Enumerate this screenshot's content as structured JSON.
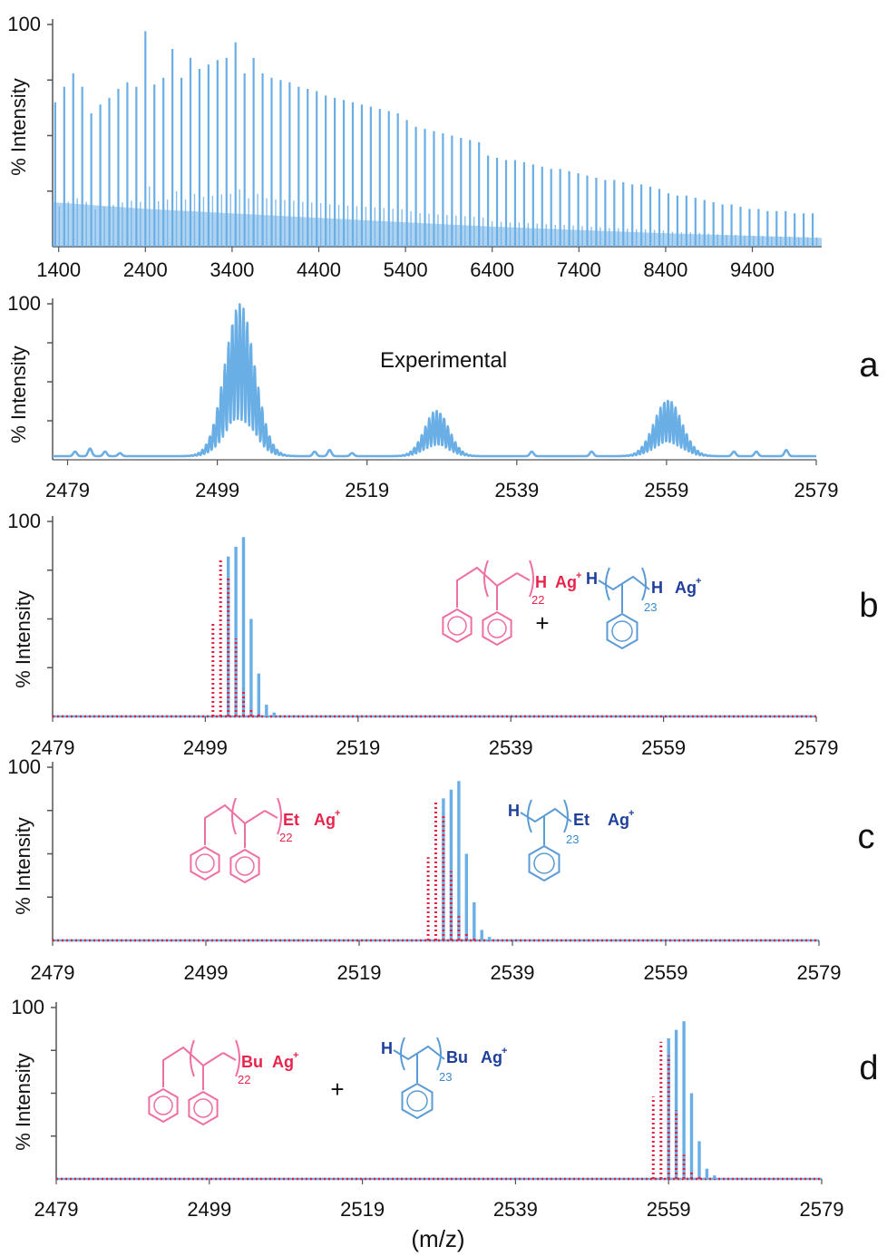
{
  "colors": {
    "experimental": "#6aaee6",
    "theory_blue": "#6aaee6",
    "theory_red": "#e5213f",
    "axis": "#555555",
    "chem_red": "#e8244c",
    "chem_blue": "#1f3f9a",
    "ring_red": "#ee6fa1",
    "ring_blue": "#5b9bd5"
  },
  "xlabel": "(m/z)",
  "chart_data": [
    {
      "id": "overview",
      "type": "line",
      "title": "",
      "ylabel": "% Intensity",
      "ytick_label": "100",
      "xlim": [
        1330,
        10200
      ],
      "ylim": [
        0,
        100
      ],
      "xticks": [
        "1400",
        "2400",
        "3400",
        "4400",
        "5400",
        "6400",
        "7400",
        "8400",
        "9400"
      ],
      "peak_spacing": 104,
      "peaks": [
        {
          "x": 1360,
          "y": 65
        },
        {
          "x": 1464,
          "y": 72
        },
        {
          "x": 1568,
          "y": 78
        },
        {
          "x": 1672,
          "y": 72
        },
        {
          "x": 1776,
          "y": 60
        },
        {
          "x": 1880,
          "y": 64
        },
        {
          "x": 1984,
          "y": 67
        },
        {
          "x": 2088,
          "y": 71
        },
        {
          "x": 2192,
          "y": 74
        },
        {
          "x": 2296,
          "y": 72
        },
        {
          "x": 2400,
          "y": 97
        },
        {
          "x": 2504,
          "y": 73
        },
        {
          "x": 2608,
          "y": 76
        },
        {
          "x": 2712,
          "y": 89
        },
        {
          "x": 2816,
          "y": 76
        },
        {
          "x": 2920,
          "y": 85
        },
        {
          "x": 3024,
          "y": 80
        },
        {
          "x": 3128,
          "y": 82
        },
        {
          "x": 3232,
          "y": 84
        },
        {
          "x": 3336,
          "y": 85
        },
        {
          "x": 3440,
          "y": 92
        },
        {
          "x": 3544,
          "y": 78
        },
        {
          "x": 3648,
          "y": 85
        },
        {
          "x": 3752,
          "y": 78
        },
        {
          "x": 3856,
          "y": 76
        },
        {
          "x": 3960,
          "y": 75
        },
        {
          "x": 4064,
          "y": 74
        },
        {
          "x": 4168,
          "y": 72
        },
        {
          "x": 4272,
          "y": 71
        },
        {
          "x": 4376,
          "y": 70
        },
        {
          "x": 4480,
          "y": 68
        },
        {
          "x": 4584,
          "y": 67
        },
        {
          "x": 4688,
          "y": 66
        },
        {
          "x": 4792,
          "y": 65
        },
        {
          "x": 4896,
          "y": 64
        },
        {
          "x": 5000,
          "y": 63
        },
        {
          "x": 5104,
          "y": 62
        },
        {
          "x": 5208,
          "y": 61
        },
        {
          "x": 5312,
          "y": 60
        },
        {
          "x": 5416,
          "y": 57
        },
        {
          "x": 5520,
          "y": 54
        },
        {
          "x": 5624,
          "y": 53
        },
        {
          "x": 5728,
          "y": 52
        },
        {
          "x": 5832,
          "y": 51
        },
        {
          "x": 5936,
          "y": 50
        },
        {
          "x": 6040,
          "y": 49
        },
        {
          "x": 6144,
          "y": 48
        },
        {
          "x": 6248,
          "y": 47
        },
        {
          "x": 6352,
          "y": 41
        },
        {
          "x": 6456,
          "y": 40
        },
        {
          "x": 6560,
          "y": 39
        },
        {
          "x": 6664,
          "y": 39
        },
        {
          "x": 6768,
          "y": 38
        },
        {
          "x": 6872,
          "y": 37
        },
        {
          "x": 6976,
          "y": 36
        },
        {
          "x": 7080,
          "y": 35
        },
        {
          "x": 7184,
          "y": 35
        },
        {
          "x": 7288,
          "y": 34
        },
        {
          "x": 7392,
          "y": 33
        },
        {
          "x": 7496,
          "y": 32
        },
        {
          "x": 7600,
          "y": 31
        },
        {
          "x": 7704,
          "y": 30
        },
        {
          "x": 7808,
          "y": 30
        },
        {
          "x": 7912,
          "y": 29
        },
        {
          "x": 8016,
          "y": 28
        },
        {
          "x": 8120,
          "y": 28
        },
        {
          "x": 8224,
          "y": 27
        },
        {
          "x": 8328,
          "y": 26
        },
        {
          "x": 8432,
          "y": 24
        },
        {
          "x": 8536,
          "y": 23
        },
        {
          "x": 8640,
          "y": 23
        },
        {
          "x": 8744,
          "y": 22
        },
        {
          "x": 8848,
          "y": 21
        },
        {
          "x": 8952,
          "y": 20
        },
        {
          "x": 9056,
          "y": 19
        },
        {
          "x": 9160,
          "y": 19
        },
        {
          "x": 9264,
          "y": 18
        },
        {
          "x": 9368,
          "y": 17
        },
        {
          "x": 9472,
          "y": 17
        },
        {
          "x": 9576,
          "y": 16
        },
        {
          "x": 9680,
          "y": 16
        },
        {
          "x": 9784,
          "y": 16
        },
        {
          "x": 9888,
          "y": 15
        },
        {
          "x": 9992,
          "y": 15
        },
        {
          "x": 10096,
          "y": 15
        }
      ]
    },
    {
      "id": "a",
      "type": "line",
      "panel_label": "a",
      "annotation": "Experimental",
      "ylabel": "% Intensity",
      "ytick_label": "100",
      "xlim": [
        2477,
        2579
      ],
      "ylim": [
        0,
        100
      ],
      "xticks": [
        "2479",
        "2499",
        "2519",
        "2539",
        "2559",
        "2579"
      ],
      "clusters": [
        {
          "center": 2502.0,
          "amplitude": 100,
          "width": 2.8
        },
        {
          "center": 2528.3,
          "amplitude": 30,
          "width": 2.3
        },
        {
          "center": 2559.2,
          "amplitude": 37,
          "width": 2.6
        }
      ],
      "minor_peaks": [
        {
          "x": 2480,
          "y": 3
        },
        {
          "x": 2482,
          "y": 5
        },
        {
          "x": 2484,
          "y": 3
        },
        {
          "x": 2486,
          "y": 2
        },
        {
          "x": 2512,
          "y": 3
        },
        {
          "x": 2514,
          "y": 4
        },
        {
          "x": 2517,
          "y": 2
        },
        {
          "x": 2541,
          "y": 3
        },
        {
          "x": 2549,
          "y": 3
        },
        {
          "x": 2568,
          "y": 3
        },
        {
          "x": 2571,
          "y": 3
        },
        {
          "x": 2575,
          "y": 4
        }
      ]
    },
    {
      "id": "b",
      "type": "bar",
      "panel_label": "b",
      "ylabel": "% Intensity",
      "ytick_label": "100",
      "xlim": [
        2479,
        2579
      ],
      "ylim": [
        0,
        100
      ],
      "xticks": [
        "2479",
        "2499",
        "2519",
        "2539",
        "2559",
        "2579"
      ],
      "series": [
        {
          "color": "theory_blue",
          "style": "solid",
          "x": [
            2502,
            2503,
            2504,
            2505,
            2506,
            2507,
            2508
          ],
          "values": [
            82,
            87,
            92,
            50,
            22,
            6,
            2
          ]
        },
        {
          "color": "theory_red",
          "style": "dotted",
          "x": [
            2500,
            2501,
            2502,
            2503,
            2504,
            2505,
            2506
          ],
          "values": [
            48,
            80,
            72,
            40,
            14,
            4,
            1
          ]
        }
      ],
      "species_red": {
        "end_group": "H",
        "ion": "Ag",
        "charge": "+",
        "subscript": "22"
      },
      "species_blue": {
        "start_group": "H",
        "end_group": "H",
        "ion": "Ag",
        "charge": "+",
        "subscript": "23"
      },
      "plus_sign": "+"
    },
    {
      "id": "c",
      "type": "bar",
      "panel_label": "c",
      "ylabel": "% Intensity",
      "ytick_label": "100",
      "xlim": [
        2479,
        2579
      ],
      "ylim": [
        0,
        100
      ],
      "xticks": [
        "2479",
        "2499",
        "2519",
        "2539",
        "2559",
        "2579"
      ],
      "series": [
        {
          "color": "theory_blue",
          "style": "solid",
          "x": [
            2530,
            2531,
            2532,
            2533,
            2534,
            2535,
            2536
          ],
          "values": [
            82,
            87,
            92,
            50,
            22,
            6,
            2
          ]
        },
        {
          "color": "theory_red",
          "style": "dotted",
          "x": [
            2528,
            2529,
            2530,
            2531,
            2532,
            2533,
            2534
          ],
          "values": [
            48,
            80,
            72,
            40,
            14,
            4,
            1
          ]
        }
      ],
      "species_red": {
        "end_group": "Et",
        "ion": "Ag",
        "charge": "+",
        "subscript": "22"
      },
      "species_blue": {
        "start_group": "H",
        "end_group": "Et",
        "ion": "Ag",
        "charge": "+",
        "subscript": "23"
      }
    },
    {
      "id": "d",
      "type": "bar",
      "panel_label": "d",
      "ylabel": "% Intensity",
      "ytick_label": "100",
      "xlim": [
        2479,
        2579
      ],
      "ylim": [
        0,
        100
      ],
      "xticks": [
        "2479",
        "2499",
        "2519",
        "2539",
        "2559",
        "2579"
      ],
      "series": [
        {
          "color": "theory_blue",
          "style": "solid",
          "x": [
            2559,
            2560,
            2561,
            2562,
            2563,
            2564,
            2565
          ],
          "values": [
            82,
            87,
            92,
            50,
            22,
            6,
            2
          ]
        },
        {
          "color": "theory_red",
          "style": "dotted",
          "x": [
            2557,
            2558,
            2559,
            2560,
            2561,
            2562,
            2563
          ],
          "values": [
            48,
            80,
            72,
            40,
            14,
            4,
            1
          ]
        }
      ],
      "species_red": {
        "end_group": "Bu",
        "ion": "Ag",
        "charge": "+",
        "subscript": "22"
      },
      "species_blue": {
        "start_group": "H",
        "end_group": "Bu",
        "ion": "Ag",
        "charge": "+",
        "subscript": "23"
      },
      "plus_sign": "+"
    }
  ]
}
